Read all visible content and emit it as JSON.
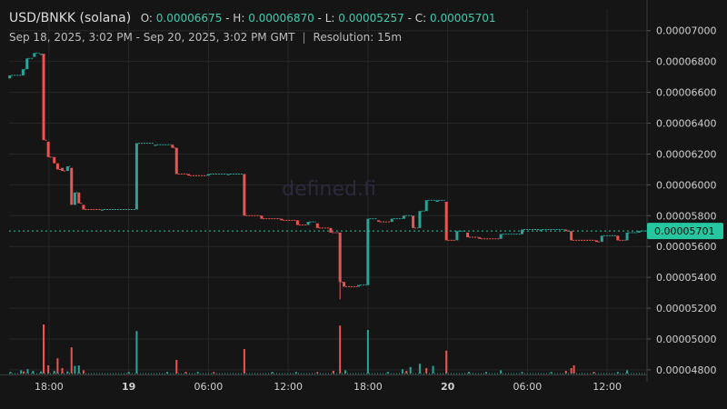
{
  "header": {
    "pair": "USD/BNKK (solana)",
    "o_label": "O:",
    "o_value": "0.00006675",
    "h_label": "H:",
    "h_value": "0.00006870",
    "l_label": "L:",
    "l_value": "0.00005257",
    "c_label": "C:",
    "c_value": "0.00005701",
    "range": "Sep 18, 2025, 3:02 PM - Sep 20, 2025, 3:02 PM GMT",
    "separator": "|",
    "resolution": "Resolution: 15m"
  },
  "watermark": "defined.fi",
  "colors": {
    "up": "#26a69a",
    "down": "#ef5350",
    "price_tag": "#26c6a0",
    "grid": "#262626",
    "axis_text": "#d0d0d0"
  },
  "chart_data": {
    "type": "candlestick",
    "x_ticks": [
      {
        "label": "18:00",
        "h": 18.0,
        "bold": false
      },
      {
        "label": "19",
        "h": 24.0,
        "bold": true
      },
      {
        "label": "06:00",
        "h": 30.0,
        "bold": false
      },
      {
        "label": "12:00",
        "h": 36.0,
        "bold": false
      },
      {
        "label": "18:00",
        "h": 42.0,
        "bold": false
      },
      {
        "label": "20",
        "h": 48.0,
        "bold": true
      },
      {
        "label": "06:00",
        "h": 54.0,
        "bold": false
      },
      {
        "label": "12:00",
        "h": 60.0,
        "bold": false
      }
    ],
    "x_range_hours": [
      15.0,
      63.0
    ],
    "y_ticks": [
      "0.00007000",
      "0.00006800",
      "0.00006600",
      "0.00006400",
      "0.00006200",
      "0.00006000",
      "0.00005800",
      "0.00005600",
      "0.00005400",
      "0.00005200",
      "0.00005000",
      "0.00004800"
    ],
    "y_range": [
      4.77e-05,
      7.14e-05
    ],
    "last_price": "0.00005701",
    "candles": [
      {
        "h": 15.05,
        "o": 6.69e-05,
        "c": 6.71e-05
      },
      {
        "h": 16.05,
        "o": 6.71e-05,
        "c": 6.75e-05
      },
      {
        "h": 16.35,
        "o": 6.75e-05,
        "c": 6.82e-05
      },
      {
        "h": 16.9,
        "o": 6.83e-05,
        "c": 6.855e-05
      },
      {
        "h": 17.4,
        "o": 6.85e-05,
        "c": 6.85e-05
      },
      {
        "h": 17.6,
        "o": 6.85e-05,
        "c": 6.29e-05
      },
      {
        "h": 17.95,
        "o": 6.28e-05,
        "c": 6.18e-05
      },
      {
        "h": 18.4,
        "o": 6.18e-05,
        "c": 6.14e-05
      },
      {
        "h": 18.65,
        "o": 6.14e-05,
        "c": 6.1e-05
      },
      {
        "h": 19.0,
        "o": 6.11e-05,
        "c": 6.09e-05
      },
      {
        "h": 19.4,
        "o": 6.09e-05,
        "c": 6.12e-05
      },
      {
        "h": 19.7,
        "o": 6.11e-05,
        "c": 5.87e-05
      },
      {
        "h": 19.95,
        "o": 5.87e-05,
        "c": 5.95e-05
      },
      {
        "h": 20.25,
        "o": 5.95e-05,
        "c": 5.88e-05
      },
      {
        "h": 20.6,
        "o": 5.87e-05,
        "c": 5.84e-05
      },
      {
        "h": 22.0,
        "o": 5.84e-05,
        "c": 5.84e-05
      },
      {
        "h": 24.6,
        "o": 5.84e-05,
        "c": 6.27e-05
      },
      {
        "h": 26.0,
        "o": 6.26e-05,
        "c": 6.26e-05
      },
      {
        "h": 27.3,
        "o": 6.26e-05,
        "c": 6.24e-05
      },
      {
        "h": 27.6,
        "o": 6.24e-05,
        "c": 6.07e-05
      },
      {
        "h": 28.5,
        "o": 6.07e-05,
        "c": 6.06e-05
      },
      {
        "h": 30.0,
        "o": 6.06e-05,
        "c": 6.07e-05
      },
      {
        "h": 31.5,
        "o": 6.07e-05,
        "c": 6.07e-05
      },
      {
        "h": 32.7,
        "o": 6.07e-05,
        "c": 5.8e-05
      },
      {
        "h": 34.0,
        "o": 5.8e-05,
        "c": 5.78e-05
      },
      {
        "h": 35.5,
        "o": 5.78e-05,
        "c": 5.77e-05
      },
      {
        "h": 36.7,
        "o": 5.77e-05,
        "c": 5.74e-05
      },
      {
        "h": 37.5,
        "o": 5.74e-05,
        "c": 5.76e-05
      },
      {
        "h": 38.2,
        "o": 5.75e-05,
        "c": 5.72e-05
      },
      {
        "h": 39.2,
        "o": 5.72e-05,
        "c": 5.69e-05
      },
      {
        "h": 39.9,
        "o": 5.69e-05,
        "c": 5.37e-05
      },
      {
        "h": 40.2,
        "o": 5.37e-05,
        "c": 5.34e-05
      },
      {
        "h": 41.3,
        "o": 5.34e-05,
        "c": 5.35e-05
      },
      {
        "h": 42.0,
        "o": 5.35e-05,
        "c": 5.78e-05
      },
      {
        "h": 42.8,
        "o": 5.77e-05,
        "c": 5.76e-05
      },
      {
        "h": 43.8,
        "o": 5.76e-05,
        "c": 5.78e-05
      },
      {
        "h": 44.7,
        "o": 5.78e-05,
        "c": 5.8e-05
      },
      {
        "h": 45.4,
        "o": 5.8e-05,
        "c": 5.72e-05
      },
      {
        "h": 45.9,
        "o": 5.72e-05,
        "c": 5.83e-05
      },
      {
        "h": 46.4,
        "o": 5.83e-05,
        "c": 5.9e-05
      },
      {
        "h": 47.2,
        "o": 5.89e-05,
        "c": 5.9e-05
      },
      {
        "h": 47.9,
        "o": 5.89e-05,
        "c": 5.64e-05
      },
      {
        "h": 48.7,
        "o": 5.64e-05,
        "c": 5.7e-05
      },
      {
        "h": 49.5,
        "o": 5.69e-05,
        "c": 5.66e-05
      },
      {
        "h": 50.4,
        "o": 5.66e-05,
        "c": 5.65e-05
      },
      {
        "h": 52.0,
        "o": 5.65e-05,
        "c": 5.68e-05
      },
      {
        "h": 53.6,
        "o": 5.68e-05,
        "c": 5.71e-05
      },
      {
        "h": 55.0,
        "o": 5.7e-05,
        "c": 5.71e-05
      },
      {
        "h": 56.9,
        "o": 5.71e-05,
        "c": 5.7e-05
      },
      {
        "h": 57.3,
        "o": 5.7e-05,
        "c": 5.64e-05
      },
      {
        "h": 59.2,
        "o": 5.64e-05,
        "c": 5.63e-05
      },
      {
        "h": 59.6,
        "o": 5.63e-05,
        "c": 5.67e-05
      },
      {
        "h": 60.8,
        "o": 5.67e-05,
        "c": 5.64e-05
      },
      {
        "h": 61.5,
        "o": 5.64e-05,
        "c": 5.69e-05
      },
      {
        "h": 62.4,
        "o": 5.69e-05,
        "c": 5.701e-05
      }
    ],
    "volume": [
      {
        "h": 15.1,
        "v": 3,
        "up": true
      },
      {
        "h": 15.9,
        "v": 6,
        "up": true
      },
      {
        "h": 16.1,
        "v": 4,
        "up": false
      },
      {
        "h": 16.4,
        "v": 8,
        "up": true
      },
      {
        "h": 16.8,
        "v": 5,
        "up": true
      },
      {
        "h": 17.4,
        "v": 4,
        "up": true
      },
      {
        "h": 17.6,
        "v": 90,
        "up": false
      },
      {
        "h": 17.95,
        "v": 15,
        "up": false
      },
      {
        "h": 18.4,
        "v": 5,
        "up": true
      },
      {
        "h": 18.65,
        "v": 28,
        "up": false
      },
      {
        "h": 19.0,
        "v": 10,
        "up": false
      },
      {
        "h": 19.4,
        "v": 4,
        "up": true
      },
      {
        "h": 19.7,
        "v": 48,
        "up": false
      },
      {
        "h": 19.95,
        "v": 14,
        "up": true
      },
      {
        "h": 20.25,
        "v": 15,
        "up": true
      },
      {
        "h": 20.6,
        "v": 6,
        "up": false
      },
      {
        "h": 24.0,
        "v": 3,
        "up": true
      },
      {
        "h": 24.6,
        "v": 78,
        "up": true
      },
      {
        "h": 26.9,
        "v": 3,
        "up": true
      },
      {
        "h": 27.6,
        "v": 25,
        "up": false
      },
      {
        "h": 28.3,
        "v": 3,
        "up": false
      },
      {
        "h": 29.2,
        "v": 3,
        "up": true
      },
      {
        "h": 30.4,
        "v": 3,
        "up": false
      },
      {
        "h": 32.7,
        "v": 45,
        "up": false
      },
      {
        "h": 34.8,
        "v": 3,
        "up": true
      },
      {
        "h": 36.6,
        "v": 3,
        "up": true
      },
      {
        "h": 38.2,
        "v": 3,
        "up": false
      },
      {
        "h": 39.4,
        "v": 5,
        "up": false
      },
      {
        "h": 39.9,
        "v": 88,
        "up": false
      },
      {
        "h": 40.3,
        "v": 6,
        "up": true
      },
      {
        "h": 42.0,
        "v": 80,
        "up": true
      },
      {
        "h": 43.5,
        "v": 3,
        "up": true
      },
      {
        "h": 44.6,
        "v": 8,
        "up": true
      },
      {
        "h": 44.9,
        "v": 5,
        "up": false
      },
      {
        "h": 45.2,
        "v": 12,
        "up": true
      },
      {
        "h": 45.9,
        "v": 18,
        "up": true
      },
      {
        "h": 46.4,
        "v": 10,
        "up": false
      },
      {
        "h": 46.9,
        "v": 14,
        "up": true
      },
      {
        "h": 47.9,
        "v": 42,
        "up": false
      },
      {
        "h": 49.6,
        "v": 3,
        "up": true
      },
      {
        "h": 50.9,
        "v": 3,
        "up": true
      },
      {
        "h": 52.0,
        "v": 6,
        "up": true
      },
      {
        "h": 53.6,
        "v": 3,
        "up": true
      },
      {
        "h": 55.8,
        "v": 3,
        "up": true
      },
      {
        "h": 56.9,
        "v": 5,
        "up": false
      },
      {
        "h": 57.3,
        "v": 10,
        "up": false
      },
      {
        "h": 57.5,
        "v": 15,
        "up": false
      },
      {
        "h": 59.0,
        "v": 3,
        "up": false
      },
      {
        "h": 60.8,
        "v": 3,
        "up": true
      },
      {
        "h": 61.5,
        "v": 6,
        "up": true
      }
    ]
  }
}
